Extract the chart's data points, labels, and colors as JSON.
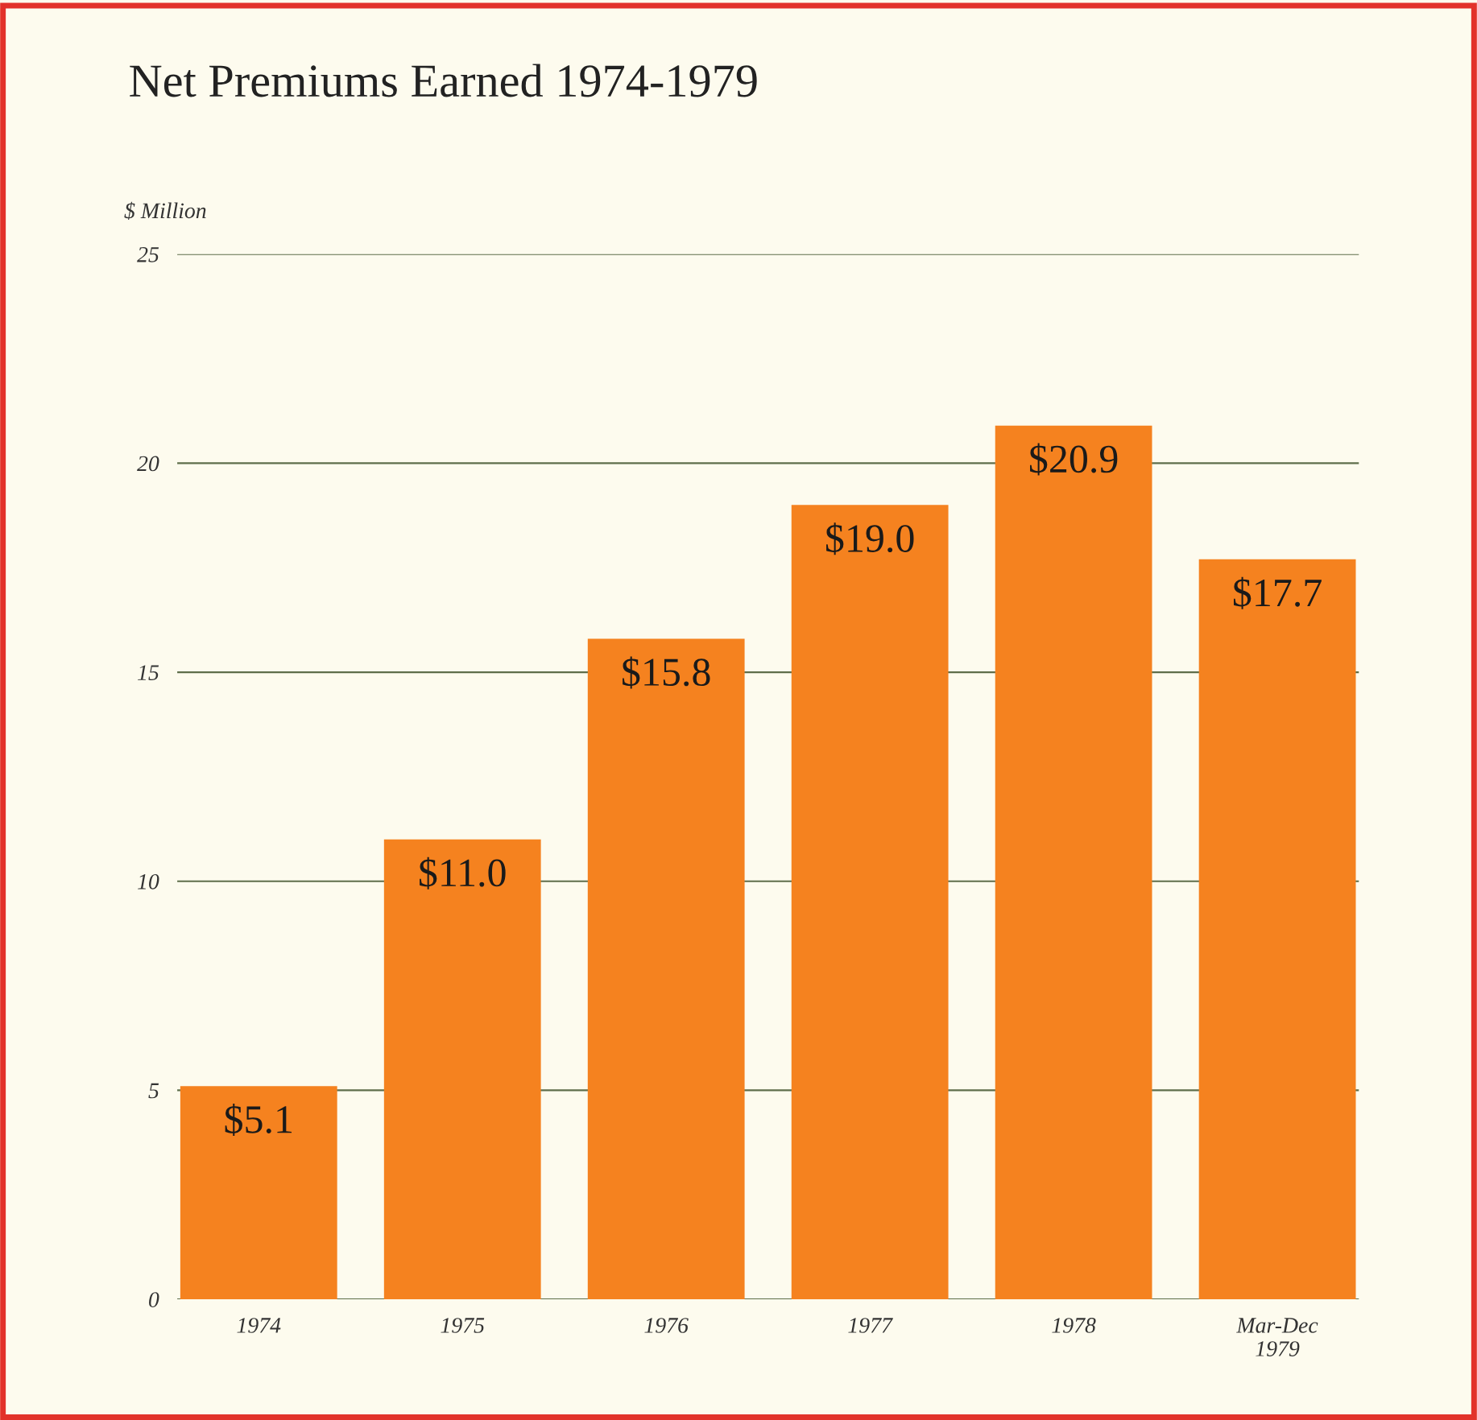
{
  "chart_data": {
    "type": "bar",
    "title": "Net Premiums Earned 1974-1979",
    "ylabel": "$ Million",
    "categories": [
      "1974",
      "1975",
      "1976",
      "1977",
      "1978",
      "Mar-Dec\n1979"
    ],
    "values": [
      5.1,
      11.0,
      15.8,
      19.0,
      20.9,
      17.7
    ],
    "value_labels": [
      "$5.1",
      "$11.0",
      "$15.8",
      "$19.0",
      "$20.9",
      "$17.7"
    ],
    "color": "#f5821f",
    "ylim": [
      0,
      25
    ],
    "yticks": [
      0,
      5,
      10,
      15,
      20,
      25
    ],
    "grid": "y",
    "legend": false
  }
}
